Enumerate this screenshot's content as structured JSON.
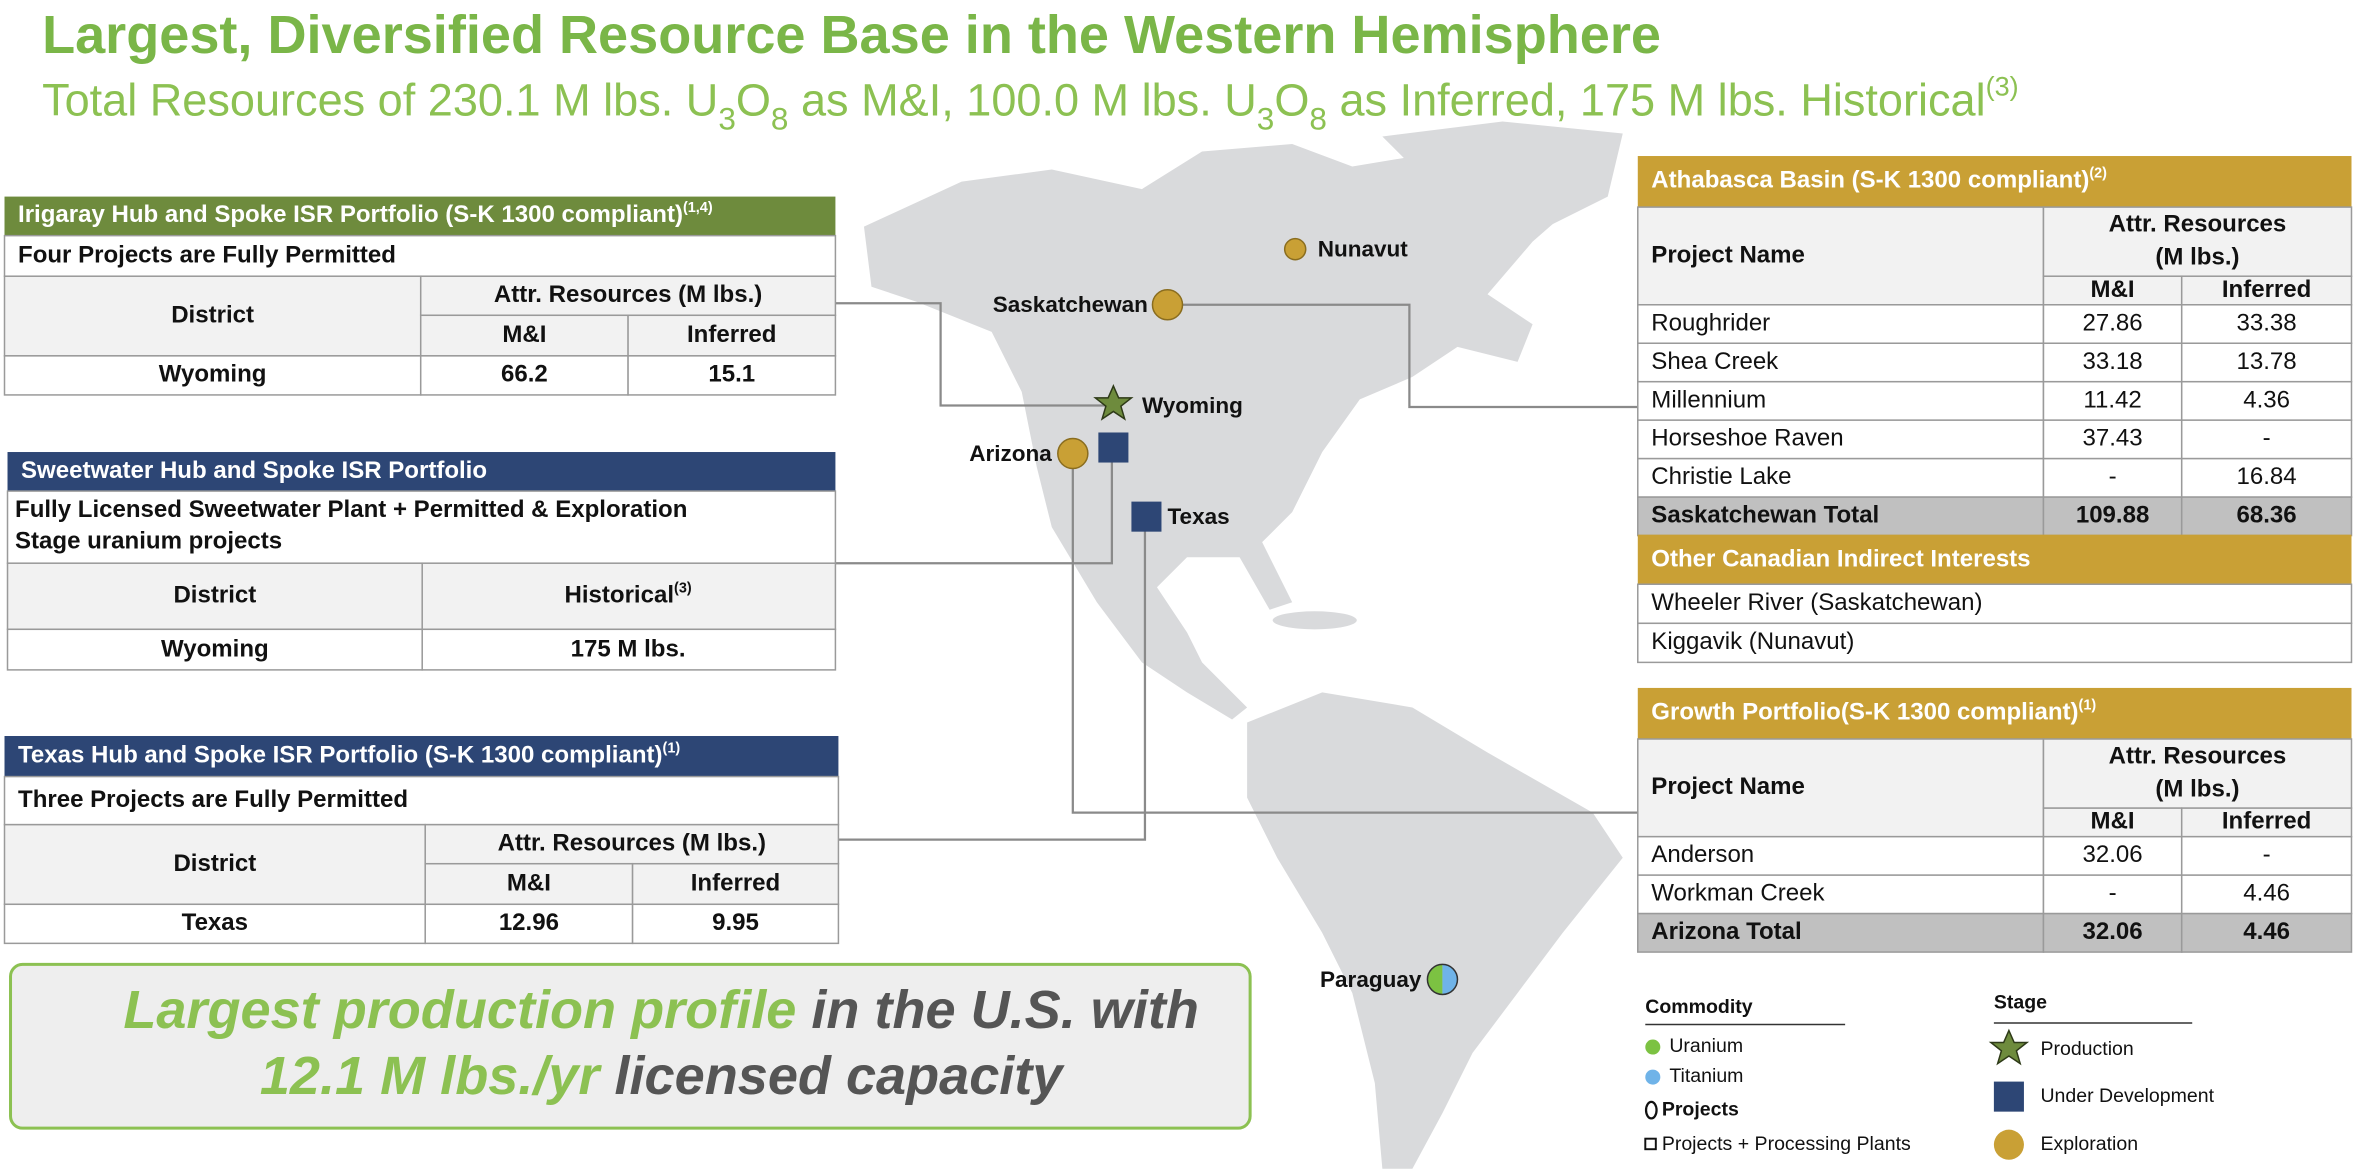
{
  "header": {
    "title": "Largest, Diversified Resource Base in the Western Hemisphere",
    "subtitle": [
      "Total Resources of 230.1 M lbs. U",
      "3",
      "O",
      "8",
      " as M&I, 100.0 M lbs. U",
      "3",
      "O",
      "8",
      " as Inferred, 175 M lbs. Historical",
      "(3)"
    ]
  },
  "irigaray": {
    "title": "Irigaray Hub and Spoke ISR Portfolio (S-K 1300 compliant)",
    "note": "(1,4)",
    "subtitle": "Four Projects are Fully Permitted",
    "columns": {
      "district": "District",
      "group": "Attr. Resources (M lbs.)",
      "mi": "M&I",
      "inferred": "Inferred"
    },
    "rows": [
      [
        "Wyoming",
        "66.2",
        "15.1"
      ]
    ]
  },
  "sweetwater": {
    "title": "Sweetwater Hub and Spoke ISR Portfolio",
    "subtitle": [
      "Fully Licensed Sweetwater Plant + Permitted & Exploration",
      "Stage uranium projects"
    ],
    "columns": {
      "district": "District",
      "historical": "Historical",
      "note": "(3)"
    },
    "rows": [
      [
        "Wyoming",
        "175 M lbs."
      ]
    ]
  },
  "texas": {
    "title": "Texas Hub and Spoke ISR Portfolio (S-K 1300 compliant)",
    "note": "(1)",
    "subtitle": "Three Projects are Fully Permitted",
    "columns": {
      "district": "District",
      "group": "Attr. Resources (M lbs.)",
      "mi": "M&I",
      "inferred": "Inferred"
    },
    "rows": [
      [
        "Texas",
        "12.96",
        "9.95"
      ]
    ]
  },
  "athabasca": {
    "title": "Athabasca Basin (S-K 1300 compliant)",
    "note": "(2)",
    "columns": {
      "project": "Project Name",
      "group": [
        "Attr. Resources",
        "(M lbs.)"
      ],
      "mi": "M&I",
      "inferred": "Inferred"
    },
    "rows": [
      [
        "Roughrider",
        "27.86",
        "33.38"
      ],
      [
        "Shea Creek",
        "33.18",
        "13.78"
      ],
      [
        "Millennium",
        "11.42",
        "4.36"
      ],
      [
        "Horseshoe Raven",
        "37.43",
        "-"
      ],
      [
        "Christie Lake",
        "-",
        "16.84"
      ]
    ],
    "total": [
      "Saskatchewan Total",
      "109.88",
      "68.36"
    ]
  },
  "other_canadian": {
    "title": "Other Canadian Indirect Interests",
    "rows": [
      "Wheeler River (Saskatchewan)",
      "Kiggavik (Nunavut)"
    ]
  },
  "growth": {
    "title": "Growth Portfolio(S-K 1300 compliant)",
    "note": "(1)",
    "columns": {
      "project": "Project Name",
      "group": [
        "Attr. Resources",
        "(M lbs.)"
      ],
      "mi": "M&I",
      "inferred": "Inferred"
    },
    "rows": [
      [
        "Anderson",
        "32.06",
        "-"
      ],
      [
        "Workman Creek",
        "-",
        "4.46"
      ]
    ],
    "total": [
      "Arizona Total",
      "32.06",
      "4.46"
    ]
  },
  "callout": {
    "lines": [
      [
        "Largest production profile",
        " in the U.S. with"
      ],
      [
        "12.1 M lbs./yr",
        " licensed capacity"
      ]
    ]
  },
  "map_labels": {
    "nunavut": "Nunavut",
    "saskatchewan": "Saskatchewan",
    "wyoming": "Wyoming",
    "arizona": "Arizona",
    "texas": "Texas",
    "paraguay": "Paraguay"
  },
  "legend": {
    "commodity": {
      "title": "Commodity",
      "items": [
        "Uranium",
        "Titanium",
        "Projects",
        "Projects + Processing Plants"
      ]
    },
    "stage": {
      "title": "Stage",
      "items": [
        "Production",
        "Under Development",
        "Exploration"
      ]
    }
  }
}
